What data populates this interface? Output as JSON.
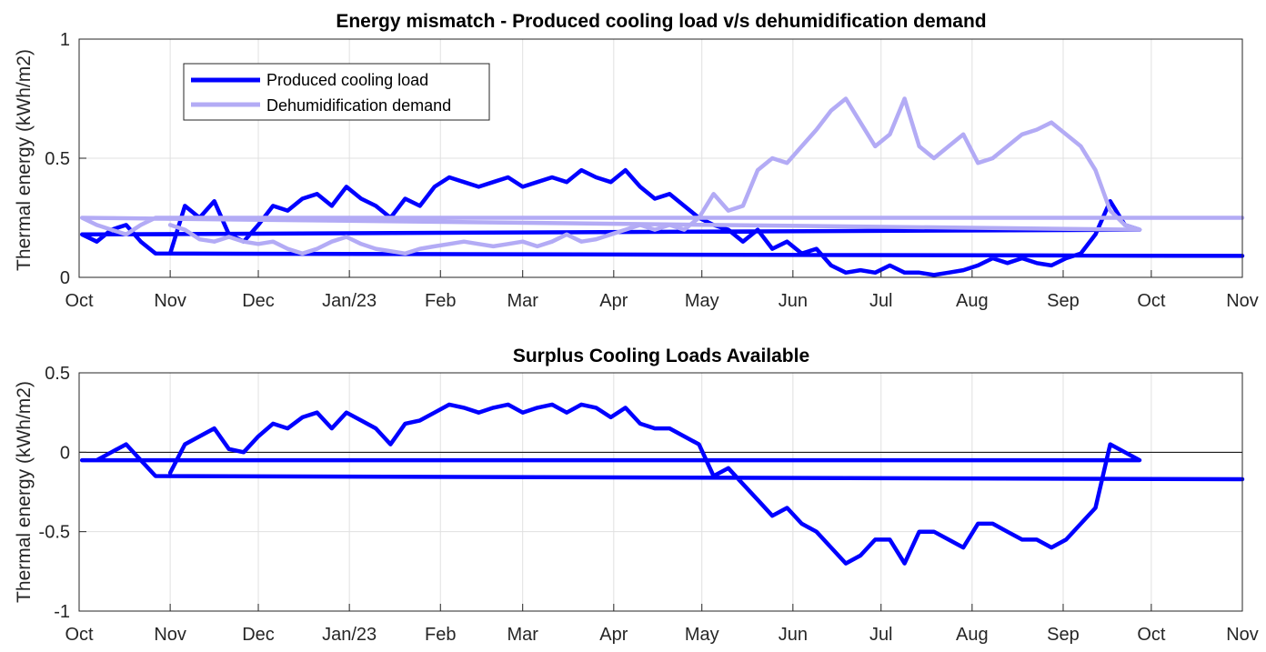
{
  "colors": {
    "produced": "#0000ff",
    "dehumid": "#b3abf5",
    "grid": "#e0e0e0",
    "axis": "#262626"
  },
  "chart_data": [
    {
      "type": "line",
      "title": "Energy mismatch - Produced cooling load v/s dehumidification demand",
      "ylabel": "Thermal energy (kWh/m2)",
      "xlabel": "",
      "x_ticks": [
        "Oct",
        "Nov",
        "Dec",
        "Jan/23",
        "Feb",
        "Mar",
        "Apr",
        "May",
        "Jun",
        "Jul",
        "Aug",
        "Sep",
        "Oct",
        "Nov"
      ],
      "ylim": [
        0,
        1
      ],
      "y_ticks": [
        0,
        0.5,
        1
      ],
      "y_tick_labels": [
        "0",
        "0.5",
        "1"
      ],
      "grid": true,
      "legend_position": "top-left",
      "series": [
        {
          "name": "Produced cooling load",
          "color": "#0000ff",
          "x": [
            "Nov 1",
            "Nov 6",
            "Nov 11",
            "Nov 16",
            "Nov 21",
            "Nov 26",
            "Dec 1",
            "Dec 6",
            "Dec 11",
            "Dec 16",
            "Dec 21",
            "Dec 26",
            "Dec 31",
            "Jan 5",
            "Jan 10",
            "Jan 15",
            "Jan 20",
            "Jan 25",
            "Jan 30",
            "Feb 4",
            "Feb 9",
            "Feb 14",
            "Feb 19",
            "Feb 24",
            "Mar 1",
            "Mar 6",
            "Mar 11",
            "Mar 16",
            "Mar 21",
            "Mar 26",
            "Mar 31",
            "Apr 5",
            "Apr 10",
            "Apr 15",
            "Apr 20",
            "Apr 25",
            "Apr 30",
            "May 5",
            "May 10",
            "May 15",
            "May 20",
            "May 25",
            "May 30",
            "Jun 4",
            "Jun 9",
            "Jun 14",
            "Jun 19",
            "Jun 24",
            "Jun 29",
            "Jul 4",
            "Jul 9",
            "Jul 14",
            "Jul 19",
            "Jul 24",
            "Jul 29",
            "Aug 3",
            "Aug 8",
            "Aug 13",
            "Aug 18",
            "Aug 23",
            "Aug 28",
            "Sep 2",
            "Sep 7",
            "Sep 12",
            "Sep 17",
            "Sep 22",
            "Sep 27",
            "Oct 2",
            "Oct 7",
            "Oct 12",
            "Oct 17",
            "Oct 22",
            "Oct 27",
            "Nov 1"
          ],
          "values": [
            0.1,
            0.3,
            0.25,
            0.32,
            0.18,
            0.15,
            0.22,
            0.3,
            0.28,
            0.33,
            0.35,
            0.3,
            0.38,
            0.33,
            0.3,
            0.25,
            0.33,
            0.3,
            0.38,
            0.42,
            0.4,
            0.38,
            0.4,
            0.42,
            0.38,
            0.4,
            0.42,
            0.4,
            0.45,
            0.42,
            0.4,
            0.45,
            0.38,
            0.33,
            0.35,
            0.3,
            0.25,
            0.22,
            0.2,
            0.15,
            0.2,
            0.12,
            0.15,
            0.1,
            0.12,
            0.05,
            0.02,
            0.03,
            0.02,
            0.05,
            0.02,
            0.02,
            0.01,
            0.02,
            0.03,
            0.05,
            0.08,
            0.06,
            0.08,
            0.06,
            0.05,
            0.08,
            0.1,
            0.18,
            0.32,
            0.22,
            0.2,
            0.18,
            0.15,
            0.2,
            0.22,
            0.15,
            0.1,
            0.09
          ]
        },
        {
          "name": "Dehumidification demand",
          "color": "#b3abf5",
          "x": [
            "Nov 1",
            "Nov 6",
            "Nov 11",
            "Nov 16",
            "Nov 21",
            "Nov 26",
            "Dec 1",
            "Dec 6",
            "Dec 11",
            "Dec 16",
            "Dec 21",
            "Dec 26",
            "Dec 31",
            "Jan 5",
            "Jan 10",
            "Jan 15",
            "Jan 20",
            "Jan 25",
            "Jan 30",
            "Feb 4",
            "Feb 9",
            "Feb 14",
            "Feb 19",
            "Feb 24",
            "Mar 1",
            "Mar 6",
            "Mar 11",
            "Mar 16",
            "Mar 21",
            "Mar 26",
            "Mar 31",
            "Apr 5",
            "Apr 10",
            "Apr 15",
            "Apr 20",
            "Apr 25",
            "Apr 30",
            "May 5",
            "May 10",
            "May 15",
            "May 20",
            "May 25",
            "May 30",
            "Jun 4",
            "Jun 9",
            "Jun 14",
            "Jun 19",
            "Jun 24",
            "Jun 29",
            "Jul 4",
            "Jul 9",
            "Jul 14",
            "Jul 19",
            "Jul 24",
            "Jul 29",
            "Aug 3",
            "Aug 8",
            "Aug 13",
            "Aug 18",
            "Aug 23",
            "Aug 28",
            "Sep 2",
            "Sep 7",
            "Sep 12",
            "Sep 17",
            "Sep 22",
            "Sep 27",
            "Oct 2",
            "Oct 7",
            "Oct 12",
            "Oct 17",
            "Oct 22",
            "Oct 27",
            "Nov 1"
          ],
          "values": [
            0.22,
            0.2,
            0.16,
            0.15,
            0.17,
            0.15,
            0.14,
            0.15,
            0.12,
            0.1,
            0.12,
            0.15,
            0.17,
            0.14,
            0.12,
            0.11,
            0.1,
            0.12,
            0.13,
            0.14,
            0.15,
            0.14,
            0.13,
            0.14,
            0.15,
            0.13,
            0.15,
            0.18,
            0.15,
            0.16,
            0.18,
            0.2,
            0.22,
            0.2,
            0.22,
            0.2,
            0.25,
            0.35,
            0.28,
            0.3,
            0.45,
            0.5,
            0.48,
            0.55,
            0.62,
            0.7,
            0.75,
            0.65,
            0.55,
            0.6,
            0.75,
            0.55,
            0.5,
            0.55,
            0.6,
            0.48,
            0.5,
            0.55,
            0.6,
            0.62,
            0.65,
            0.6,
            0.55,
            0.45,
            0.28,
            0.22,
            0.2,
            0.25,
            0.22,
            0.2,
            0.18,
            0.22,
            0.25,
            0.25
          ]
        }
      ]
    },
    {
      "type": "line",
      "title": "Surplus Cooling Loads Available",
      "ylabel": "Thermal energy (kWh/m2)",
      "xlabel": "",
      "x_ticks": [
        "Oct",
        "Nov",
        "Dec",
        "Jan/23",
        "Feb",
        "Mar",
        "Apr",
        "May",
        "Jun",
        "Jul",
        "Aug",
        "Sep",
        "Oct",
        "Nov"
      ],
      "ylim": [
        -1,
        0.5
      ],
      "y_ticks": [
        -1,
        -0.5,
        0,
        0.5
      ],
      "y_tick_labels": [
        "-1",
        "-0.5",
        "0",
        "0.5"
      ],
      "grid": true,
      "zero_line": true,
      "series": [
        {
          "color": "#0000ff",
          "x": [
            "Nov 1",
            "Nov 6",
            "Nov 11",
            "Nov 16",
            "Nov 21",
            "Nov 26",
            "Dec 1",
            "Dec 6",
            "Dec 11",
            "Dec 16",
            "Dec 21",
            "Dec 26",
            "Dec 31",
            "Jan 5",
            "Jan 10",
            "Jan 15",
            "Jan 20",
            "Jan 25",
            "Jan 30",
            "Feb 4",
            "Feb 9",
            "Feb 14",
            "Feb 19",
            "Feb 24",
            "Mar 1",
            "Mar 6",
            "Mar 11",
            "Mar 16",
            "Mar 21",
            "Mar 26",
            "Mar 31",
            "Apr 5",
            "Apr 10",
            "Apr 15",
            "Apr 20",
            "Apr 25",
            "Apr 30",
            "May 5",
            "May 10",
            "May 15",
            "May 20",
            "May 25",
            "May 30",
            "Jun 4",
            "Jun 9",
            "Jun 14",
            "Jun 19",
            "Jun 24",
            "Jun 29",
            "Jul 4",
            "Jul 9",
            "Jul 14",
            "Jul 19",
            "Jul 24",
            "Jul 29",
            "Aug 3",
            "Aug 8",
            "Aug 13",
            "Aug 18",
            "Aug 23",
            "Aug 28",
            "Sep 2",
            "Sep 7",
            "Sep 12",
            "Sep 17",
            "Sep 22",
            "Sep 27",
            "Oct 2",
            "Oct 7",
            "Oct 12",
            "Oct 17",
            "Oct 22",
            "Oct 27",
            "Nov 1"
          ],
          "values": [
            -0.13,
            0.05,
            0.1,
            0.15,
            0.02,
            0.0,
            0.1,
            0.18,
            0.15,
            0.22,
            0.25,
            0.15,
            0.25,
            0.2,
            0.15,
            0.05,
            0.18,
            0.2,
            0.25,
            0.3,
            0.28,
            0.25,
            0.28,
            0.3,
            0.25,
            0.28,
            0.3,
            0.25,
            0.3,
            0.28,
            0.22,
            0.28,
            0.18,
            0.15,
            0.15,
            0.1,
            0.05,
            -0.15,
            -0.1,
            -0.2,
            -0.3,
            -0.4,
            -0.35,
            -0.45,
            -0.5,
            -0.6,
            -0.7,
            -0.65,
            -0.55,
            -0.55,
            -0.7,
            -0.5,
            -0.5,
            -0.55,
            -0.6,
            -0.45,
            -0.45,
            -0.5,
            -0.55,
            -0.55,
            -0.6,
            -0.55,
            -0.45,
            -0.35,
            0.05,
            0.0,
            -0.05,
            -0.05,
            -0.05,
            0.0,
            0.05,
            -0.05,
            -0.15,
            -0.17
          ]
        }
      ]
    }
  ]
}
